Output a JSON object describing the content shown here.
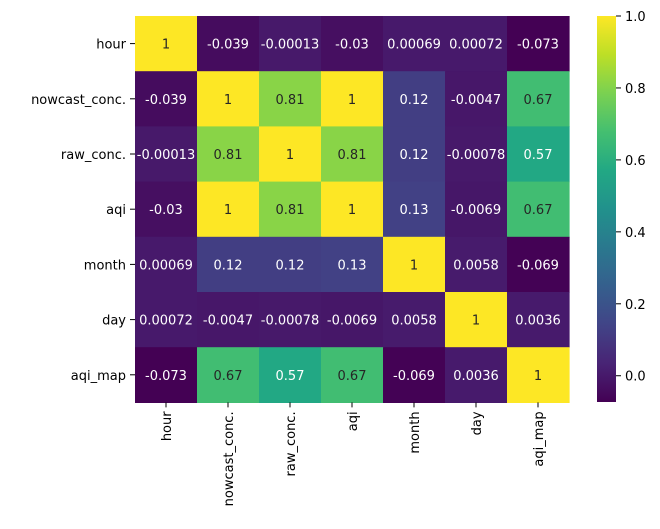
{
  "chart_data": {
    "type": "heatmap",
    "title": "",
    "xlabel": "",
    "ylabel": "",
    "colormap": "viridis",
    "row_labels": [
      "hour",
      "nowcast_conc.",
      "raw_conc.",
      "aqi",
      "month",
      "day",
      "aqi_map"
    ],
    "col_labels": [
      "hour",
      "nowcast_conc.",
      "raw_conc.",
      "aqi",
      "month",
      "day",
      "aqi_map"
    ],
    "values": [
      [
        1,
        -0.039,
        -0.00013,
        -0.03,
        0.00069,
        0.00072,
        -0.073
      ],
      [
        -0.039,
        1,
        0.81,
        1,
        0.12,
        -0.0047,
        0.67
      ],
      [
        -0.00013,
        0.81,
        1,
        0.81,
        0.12,
        -0.00078,
        0.57
      ],
      [
        -0.03,
        1,
        0.81,
        1,
        0.13,
        -0.0069,
        0.67
      ],
      [
        0.00069,
        0.12,
        0.12,
        0.13,
        1,
        0.0058,
        -0.069
      ],
      [
        0.00072,
        -0.0047,
        -0.00078,
        -0.0069,
        0.0058,
        1,
        0.0036
      ],
      [
        -0.073,
        0.67,
        0.57,
        0.67,
        -0.069,
        0.0036,
        1
      ]
    ],
    "annotations": [
      [
        "1",
        "-0.039",
        "-0.00013",
        "-0.03",
        "0.00069",
        "0.00072",
        "-0.073"
      ],
      [
        "-0.039",
        "1",
        "0.81",
        "1",
        "0.12",
        "-0.0047",
        "0.67"
      ],
      [
        "-0.00013",
        "0.81",
        "1",
        "0.81",
        "0.12",
        "-0.00078",
        "0.57"
      ],
      [
        "-0.03",
        "1",
        "0.81",
        "1",
        "0.13",
        "-0.0069",
        "0.67"
      ],
      [
        "0.00069",
        "0.12",
        "0.12",
        "0.13",
        "1",
        "0.0058",
        "-0.069"
      ],
      [
        "0.00072",
        "-0.0047",
        "-0.00078",
        "-0.0069",
        "0.0058",
        "1",
        "0.0036"
      ],
      [
        "-0.073",
        "0.67",
        "0.57",
        "0.67",
        "-0.069",
        "0.0036",
        "1"
      ]
    ],
    "colorbar": {
      "vmin": -0.073,
      "vmax": 1.0,
      "ticks": [
        0.0,
        0.2,
        0.4,
        0.6,
        0.8,
        1.0
      ],
      "tick_labels": [
        "0.0",
        "0.2",
        "0.4",
        "0.6",
        "0.8",
        "1.0"
      ]
    }
  }
}
